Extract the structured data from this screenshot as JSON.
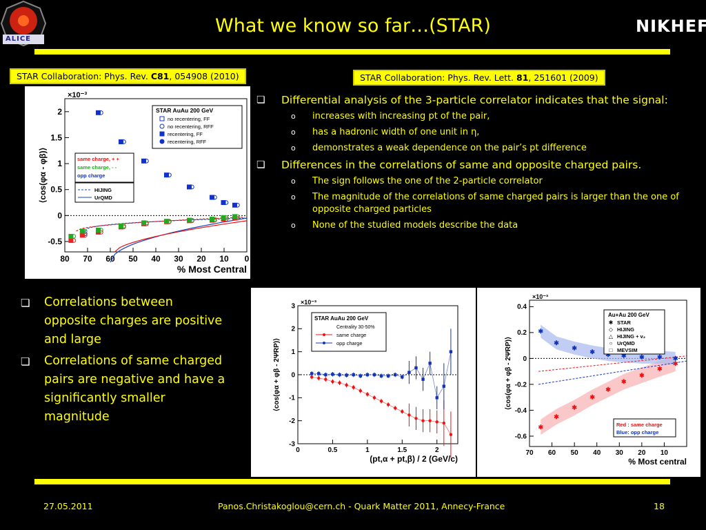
{
  "slide": {
    "title": "What we know so far…(STAR)",
    "logos": {
      "left": "ALICE",
      "right": "NIKHEF"
    }
  },
  "refs": {
    "left": {
      "pre": "STAR Collaboration: Phys. Rev. ",
      "bold": "C81",
      "post": ", 054908 (2010)"
    },
    "right": {
      "pre": "STAR Collaboration: Phys. Rev. Lett. ",
      "bold": "81",
      "post": ", 251601 (2009)"
    }
  },
  "right_bullets": [
    {
      "text": "Differential analysis of the 3-particle correlator indicates that the signal:",
      "sub": [
        "increases with increasing pt of the pair,",
        "has a hadronic width of one unit in η,",
        "demonstrates a weak dependence on the pair’s pt difference"
      ]
    },
    {
      "text": "Differences in the correlations of same and opposite charged pairs.",
      "sub": [
        "The sign follows the one of the 2-particle correlator",
        "The magnitude of the correlations of same charged pairs is larger than the one of opposite charged particles",
        "None of the studied models describe the data"
      ]
    }
  ],
  "left_bullets": [
    "Correlations between opposite charges are positive and large",
    "Correlations of same charged pairs are negative and have a significantly smaller magnitude"
  ],
  "footer": {
    "date": "27.05.2011",
    "center": "Panos.Christakoglou@cern.ch - Quark Matter 2011, Annecy-France",
    "page": "18"
  },
  "chart_data": [
    {
      "type": "scatter",
      "xlabel": "% Most Central",
      "ylabel": "⟨cos(φα - φβ)⟩",
      "multiplier": "×10⁻³",
      "xlim": [
        80,
        0
      ],
      "ylim": [
        -0.7,
        2.25
      ],
      "xticks": [
        80,
        70,
        60,
        50,
        40,
        30,
        20,
        10,
        0
      ],
      "yticks": [
        -0.5,
        0,
        0.5,
        1,
        1.5,
        2
      ],
      "legend": {
        "title": "STAR  AuAu 200 GeV",
        "entries": [
          "no recentering, FF",
          "no recentering, RFF",
          "recentering, FF",
          "recentering, RFF"
        ]
      },
      "legend2": [
        "same charge, + +",
        "same charge, - -",
        "opp charge"
      ],
      "legend3": [
        "HIJING",
        "UrQMD"
      ],
      "series": [
        {
          "name": "opp charge",
          "x": [
            5,
            10,
            15,
            25,
            35,
            45,
            55,
            65,
            72
          ],
          "y": [
            0.2,
            0.25,
            0.35,
            0.55,
            0.78,
            1.05,
            1.42,
            1.98,
            -0.35
          ]
        },
        {
          "name": "same charge, + +",
          "x": [
            5,
            10,
            15,
            25,
            35,
            45,
            55,
            65,
            72,
            77
          ],
          "y": [
            -0.05,
            -0.07,
            -0.09,
            -0.1,
            -0.12,
            -0.16,
            -0.22,
            -0.32,
            -0.38,
            -0.48
          ]
        },
        {
          "name": "same charge, - -",
          "x": [
            5,
            10,
            15,
            25,
            35,
            45,
            55,
            65,
            72,
            77
          ],
          "y": [
            -0.02,
            -0.04,
            -0.07,
            -0.09,
            -0.11,
            -0.14,
            -0.2,
            -0.28,
            -0.3,
            -0.4
          ]
        }
      ]
    },
    {
      "type": "line",
      "xlabel": "(pt,α + pt,β) / 2  (GeV/c)",
      "ylabel": "⟨cos(φα + φβ - 2ΨRP)⟩",
      "multiplier": "×10⁻³",
      "xlim": [
        0,
        2.3
      ],
      "ylim": [
        -3,
        3
      ],
      "xticks": [
        0,
        0.5,
        1,
        1.5,
        2
      ],
      "yticks": [
        -3,
        -2,
        -1,
        0,
        1,
        2,
        3
      ],
      "legend": {
        "title": "STAR  AuAu 200 GeV",
        "sub": "Centrality 30-50%",
        "entries": [
          "same charge",
          "opp charge"
        ]
      },
      "series": [
        {
          "name": "same charge",
          "x": [
            0.2,
            0.3,
            0.4,
            0.5,
            0.6,
            0.7,
            0.8,
            0.9,
            1.0,
            1.1,
            1.2,
            1.3,
            1.4,
            1.5,
            1.6,
            1.7,
            1.8,
            1.9,
            2.0,
            2.1,
            2.2
          ],
          "y": [
            -0.1,
            -0.15,
            -0.2,
            -0.3,
            -0.35,
            -0.45,
            -0.55,
            -0.7,
            -0.85,
            -1.0,
            -1.15,
            -1.3,
            -1.45,
            -1.6,
            -1.75,
            -1.9,
            -2.0,
            -2.0,
            -2.05,
            -2.1,
            -2.6
          ]
        },
        {
          "name": "opp charge",
          "x": [
            0.2,
            0.3,
            0.4,
            0.5,
            0.6,
            0.7,
            0.8,
            0.9,
            1.0,
            1.1,
            1.2,
            1.3,
            1.4,
            1.5,
            1.6,
            1.7,
            1.8,
            1.9,
            2.0,
            2.1,
            2.2
          ],
          "y": [
            0.05,
            0.05,
            0.0,
            0.02,
            0.0,
            -0.02,
            0.0,
            -0.05,
            0.0,
            0.0,
            -0.05,
            -0.05,
            0.0,
            -0.1,
            0.1,
            0.3,
            -0.2,
            0.5,
            -1.0,
            -0.5,
            1.0
          ]
        }
      ]
    },
    {
      "type": "scatter",
      "xlabel": "% Most central",
      "ylabel": "⟨cos(φα + φβ - 2ΨRP)⟩",
      "multiplier": "×10⁻³",
      "xlim": [
        70,
        0
      ],
      "ylim": [
        -0.68,
        0.45
      ],
      "xticks": [
        70,
        60,
        50,
        40,
        30,
        20,
        10
      ],
      "yticks": [
        -0.6,
        -0.4,
        -0.2,
        0,
        0.2,
        0.4
      ],
      "legend": {
        "title": "Au+Au 200 GeV",
        "entries": [
          "STAR",
          "HIJING",
          "HIJING + v₂",
          "UrQMD",
          "MEVSIM"
        ]
      },
      "legend2": [
        "Red : same charge",
        "Blue:  opp charge"
      ],
      "series": [
        {
          "name": "STAR same charge",
          "x": [
            65,
            58,
            50,
            42,
            35,
            28,
            20,
            12,
            5
          ],
          "y": [
            -0.53,
            -0.45,
            -0.38,
            -0.3,
            -0.24,
            -0.18,
            -0.13,
            -0.08,
            -0.04
          ]
        },
        {
          "name": "STAR opp charge",
          "x": [
            65,
            58,
            50,
            42,
            35,
            28,
            20,
            12,
            5
          ],
          "y": [
            0.21,
            0.12,
            0.08,
            0.05,
            0.03,
            0.02,
            0.01,
            0.01,
            0.0
          ]
        }
      ]
    }
  ]
}
